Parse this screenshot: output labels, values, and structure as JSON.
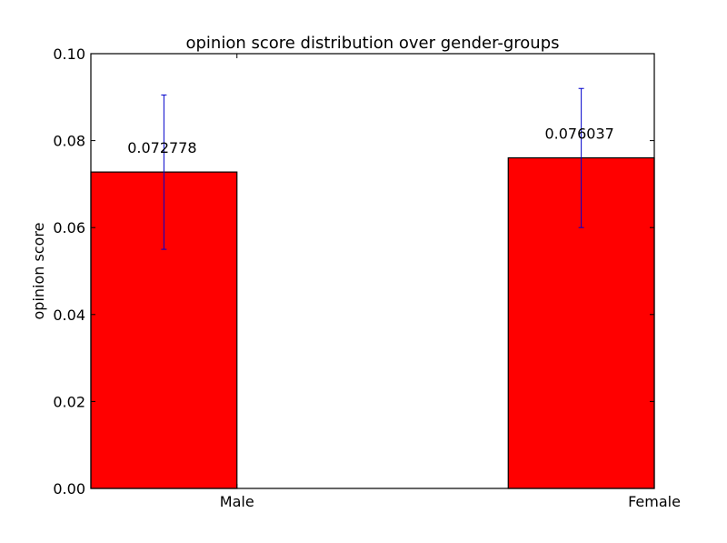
{
  "chart_data": {
    "type": "bar",
    "title": "opinion score distribution over gender-groups",
    "xlabel": "",
    "ylabel": "opinion score",
    "categories": [
      "Male",
      "Female"
    ],
    "values": [
      0.072778,
      0.076037
    ],
    "value_labels": [
      "0.072778",
      "0.076037"
    ],
    "error_low": [
      0.055,
      0.06
    ],
    "error_high": [
      0.0905,
      0.092
    ],
    "ylim": [
      0,
      0.1
    ],
    "yticks": [
      0.0,
      0.02,
      0.04,
      0.06,
      0.08,
      0.1
    ],
    "ytick_labels": [
      "0.00",
      "0.02",
      "0.04",
      "0.06",
      "0.08",
      "0.10"
    ],
    "grid": false,
    "colors": {
      "bar": "#ff0000",
      "bar_edge": "#000000",
      "error": "#0000cc"
    }
  }
}
